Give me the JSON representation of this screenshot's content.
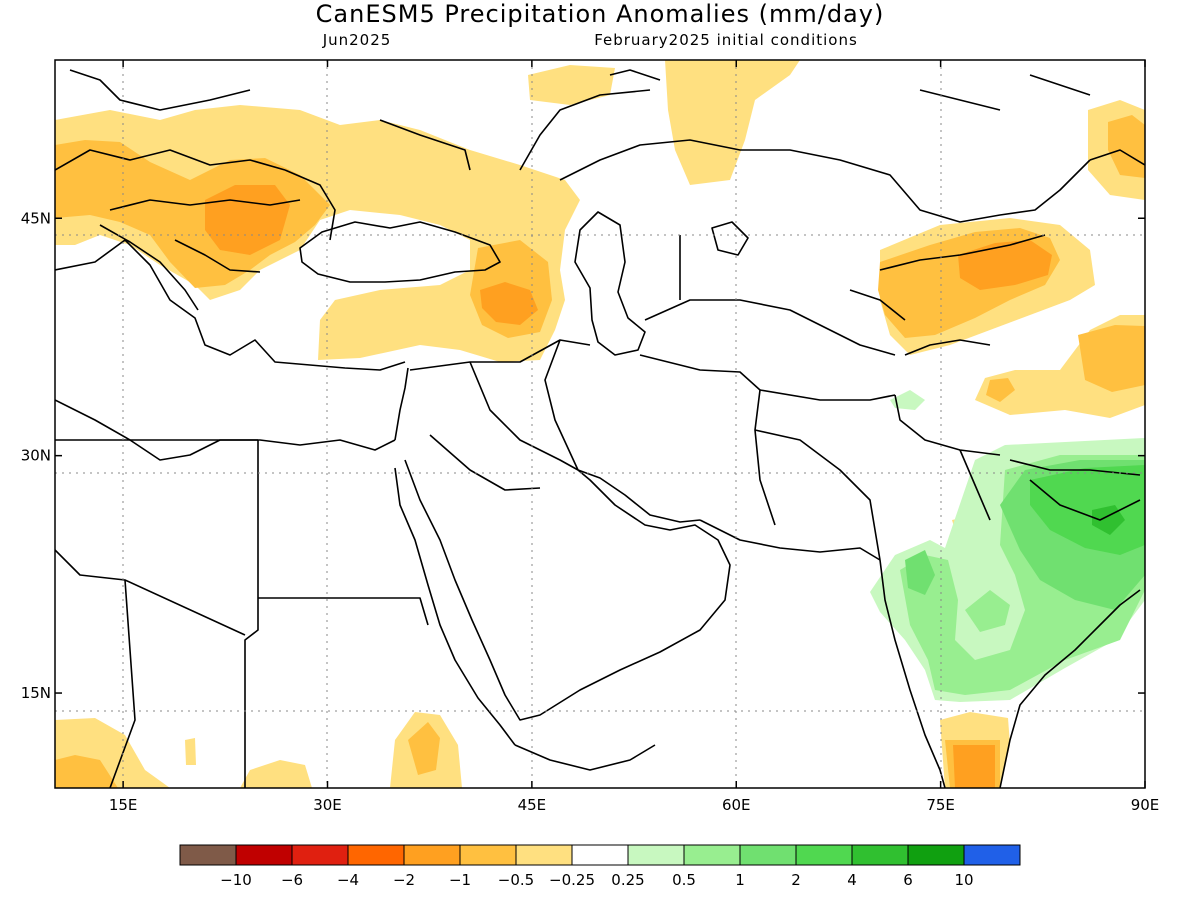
{
  "header": {
    "title": "CanESM5 Precipitation Anomalies (mm/day)",
    "period": "Jun2025",
    "init": "February2025 initial conditions"
  },
  "map": {
    "lon_range": [
      10,
      90
    ],
    "lat_range": [
      9,
      55
    ],
    "lon_ticks": [
      {
        "value": 15,
        "label": "15E"
      },
      {
        "value": 30,
        "label": "30E"
      },
      {
        "value": 45,
        "label": "45E"
      },
      {
        "value": 60,
        "label": "60E"
      },
      {
        "value": 75,
        "label": "75E"
      },
      {
        "value": 90,
        "label": "90E"
      }
    ],
    "lat_ticks": [
      {
        "value": 45,
        "label": "45N"
      },
      {
        "value": 30,
        "label": "30N"
      },
      {
        "value": 15,
        "label": "15N"
      }
    ],
    "gridlines": "dotted"
  },
  "colorbar": {
    "colors": [
      "#7f5a48",
      "#c00000",
      "#e02010",
      "#ff6600",
      "#ffa020",
      "#ffc040",
      "#ffe080",
      "#ffffff",
      "#c8f8c0",
      "#98ee90",
      "#70e070",
      "#50d850",
      "#30c030",
      "#10a010",
      "#2060e8"
    ],
    "labels": [
      "−10",
      "−6",
      "−4",
      "−2",
      "−1",
      "−0.5",
      "−0.25",
      "0.25",
      "0.5",
      "1",
      "2",
      "4",
      "6",
      "10"
    ]
  }
}
